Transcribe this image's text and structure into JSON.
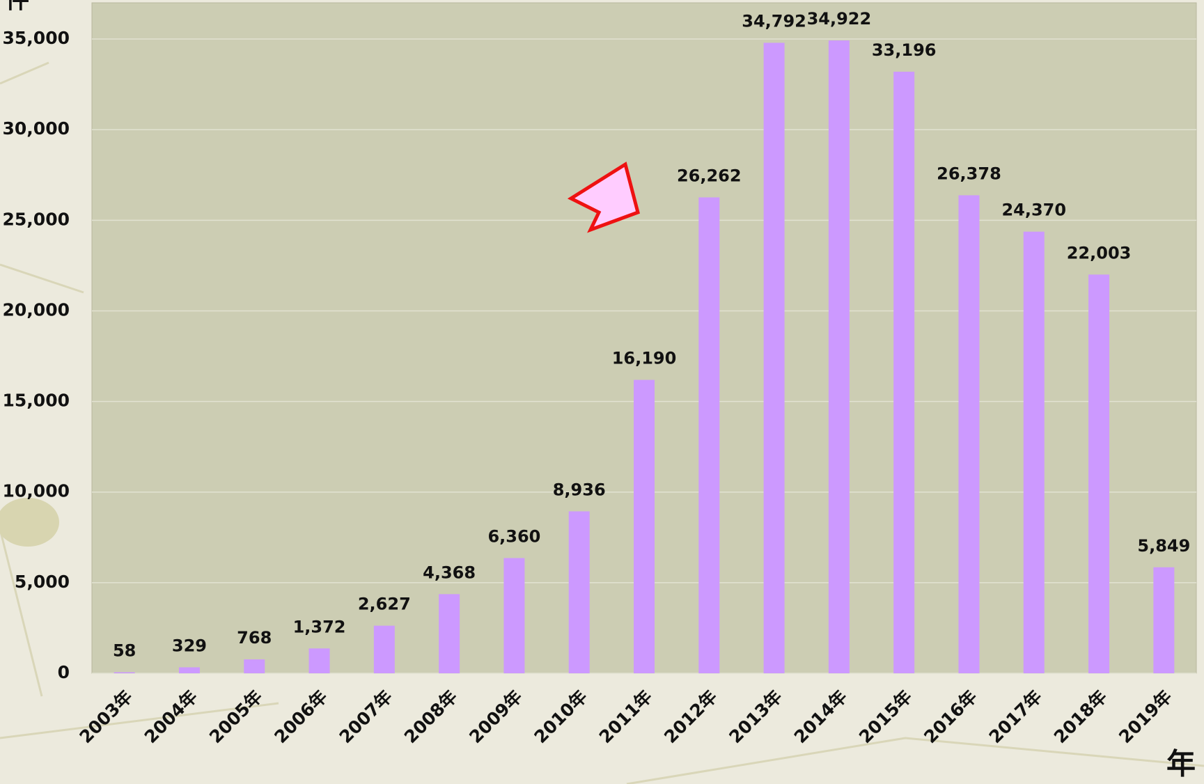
{
  "chart_data": {
    "type": "bar",
    "y_label": "件",
    "x_label": "年",
    "categories": [
      "2003年",
      "2004年",
      "2005年",
      "2006年",
      "2007年",
      "2008年",
      "2009年",
      "2010年",
      "2011年",
      "2012年",
      "2013年",
      "2014年",
      "2015年",
      "2016年",
      "2017年",
      "2018年",
      "2019年"
    ],
    "values": [
      58,
      329,
      768,
      1372,
      2627,
      4368,
      6360,
      8936,
      16190,
      26262,
      34792,
      34922,
      33196,
      26378,
      24370,
      22003,
      5849
    ],
    "value_labels": [
      "58",
      "329",
      "768",
      "1,372",
      "2,627",
      "4,368",
      "6,360",
      "8,936",
      "16,190",
      "26,262",
      "34,792",
      "34,922",
      "33,196",
      "26,378",
      "24,370",
      "22,003",
      "5,849"
    ],
    "color": "#cc99ff",
    "ylim": [
      0,
      37000
    ],
    "yticks": [
      0,
      {
        "value": 5000,
        "label": "5,000"
      },
      {
        "value": 10000,
        "label": "10,000"
      },
      {
        "value": 15000,
        "label": "15,000"
      },
      {
        "value": 20000,
        "label": "20,000"
      },
      {
        "value": 25000,
        "label": "25,000"
      },
      {
        "value": 30000,
        "label": "30,000"
      },
      {
        "value": 35000,
        "label": "35,000"
      }
    ],
    "grid": true
  }
}
